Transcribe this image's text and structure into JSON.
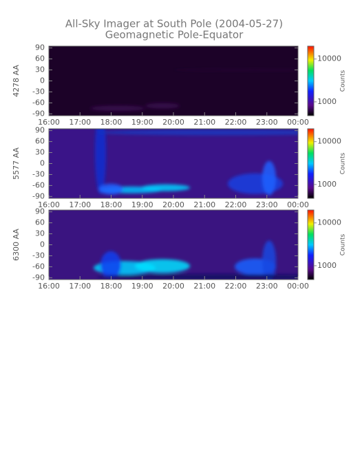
{
  "chart_data": [
    {
      "type": "heatmap",
      "title": "All-Sky Imager at South Pole (2004-05-27)",
      "subtitle": "Geomagnetic Pole-Equator",
      "ylabel": "4278 AA",
      "categories": [
        "16:00",
        "17:00",
        "18:00",
        "19:00",
        "20:00",
        "21:00",
        "22:00",
        "23:00",
        "00:00"
      ],
      "ylim": [
        -95,
        95
      ],
      "yticks": [
        90,
        60,
        30,
        0,
        -30,
        -60,
        -90
      ],
      "colorbar": {
        "label": "Counts",
        "log": true,
        "lim": [
          475,
          20000
        ],
        "ticks": [
          1000,
          10000
        ]
      }
    },
    {
      "type": "heatmap",
      "ylabel": "5577 AA",
      "categories": [
        "16:00",
        "17:00",
        "18:00",
        "19:00",
        "20:00",
        "21:00",
        "22:00",
        "23:00",
        "00:00"
      ],
      "ylim": [
        -95,
        95
      ],
      "yticks": [
        90,
        60,
        30,
        0,
        -30,
        -60,
        -90
      ],
      "colorbar": {
        "label": "Counts",
        "log": true,
        "lim": [
          475,
          20000
        ],
        "ticks": [
          1000,
          10000
        ]
      }
    },
    {
      "type": "heatmap",
      "ylabel": "6300 AA",
      "categories": [
        "16:00",
        "17:00",
        "18:00",
        "19:00",
        "20:00",
        "21:00",
        "22:00",
        "23:00",
        "00:00"
      ],
      "ylim": [
        -95,
        95
      ],
      "yticks": [
        90,
        60,
        30,
        0,
        -30,
        -60,
        -90
      ],
      "colorbar": {
        "label": "Counts",
        "log": true,
        "lim": [
          475,
          20000
        ],
        "ticks": [
          1000,
          10000
        ]
      }
    }
  ]
}
